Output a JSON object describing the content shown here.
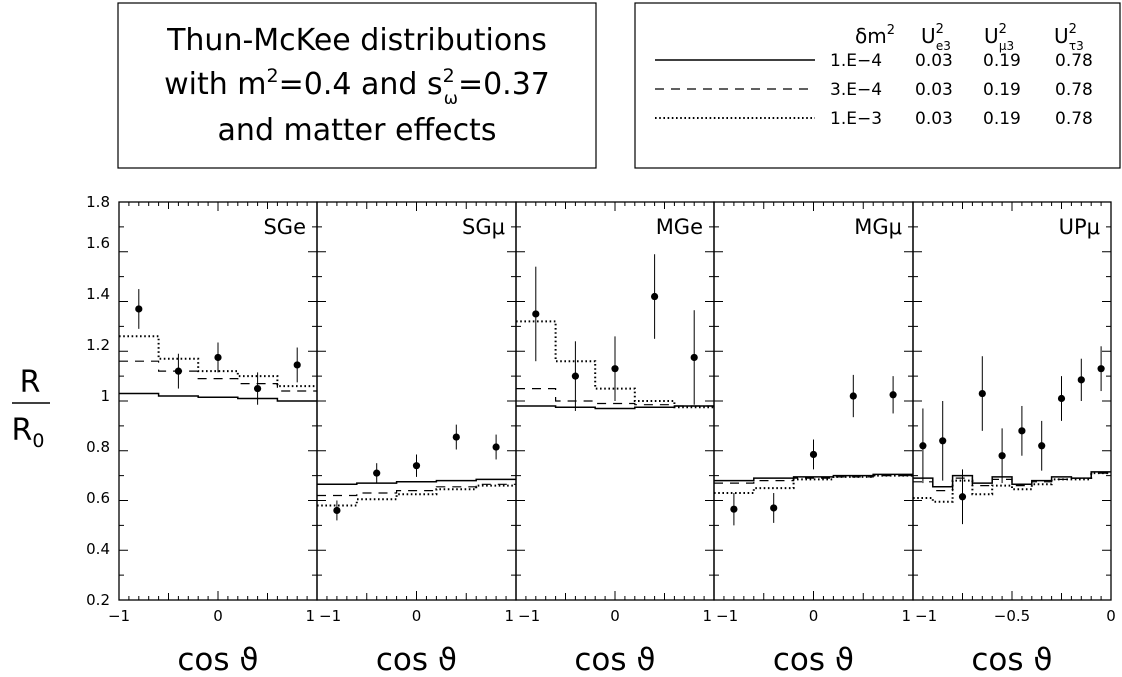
{
  "title_box": {
    "lines": [
      {
        "pre": "Thun-McKee distributions"
      },
      {
        "pre": "with m",
        "sup1": "2",
        "mid": "=0.4 and s",
        "sup2": "2",
        "sub2": "ω",
        "post": "=0.37"
      },
      {
        "pre": "and matter effects"
      }
    ]
  },
  "legend": {
    "header": {
      "dm2": {
        "base": "δm",
        "sup": "2"
      },
      "ue3": {
        "base": "U",
        "sup": "2",
        "sub": "e3"
      },
      "umu3": {
        "base": "U",
        "sup": "2",
        "sub": "μ3"
      },
      "utau3": {
        "base": "U",
        "sup": "2",
        "sub": "τ3"
      }
    },
    "rows": [
      {
        "style": "solid",
        "dm2": "1.E−4",
        "ue3": "0.03",
        "umu3": "0.19",
        "utau3": "0.78"
      },
      {
        "style": "dashed",
        "dm2": "3.E−4",
        "ue3": "0.03",
        "umu3": "0.19",
        "utau3": "0.78"
      },
      {
        "style": "dotted",
        "dm2": "1.E−3",
        "ue3": "0.03",
        "umu3": "0.19",
        "utau3": "0.78"
      }
    ]
  },
  "ylabel": {
    "num": "R",
    "den_base": "R",
    "den_sub": "0"
  },
  "xlabel": "cos ϑ",
  "y_tick_labels": [
    "0.2",
    "0.4",
    "0.6",
    "0.8",
    "1",
    "1.2",
    "1.4",
    "1.6",
    "1.8"
  ],
  "chart_data": [
    {
      "type": "step-line+scatter",
      "title": "SGe",
      "xlim": [
        -1,
        1
      ],
      "ylim": [
        0.2,
        1.8
      ],
      "x_ticks": [
        {
          "v": -1,
          "label": "−1"
        },
        {
          "v": 0,
          "label": "0"
        },
        {
          "v": 1,
          "label": "1"
        }
      ],
      "bin_edges": [
        -1,
        -0.6,
        -0.2,
        0.2,
        0.6,
        1
      ],
      "series": [
        {
          "style": "solid",
          "values": [
            1.03,
            1.02,
            1.015,
            1.01,
            1.0
          ]
        },
        {
          "style": "dashed",
          "values": [
            1.16,
            1.12,
            1.09,
            1.07,
            1.04
          ]
        },
        {
          "style": "dotted",
          "values": [
            1.26,
            1.17,
            1.12,
            1.1,
            1.06
          ]
        }
      ],
      "points": [
        {
          "x": -0.8,
          "y": 1.37,
          "err": 0.08
        },
        {
          "x": -0.4,
          "y": 1.12,
          "err": 0.07
        },
        {
          "x": 0.0,
          "y": 1.175,
          "err": 0.06
        },
        {
          "x": 0.4,
          "y": 1.05,
          "err": 0.065
        },
        {
          "x": 0.8,
          "y": 1.145,
          "err": 0.07
        }
      ]
    },
    {
      "type": "step-line+scatter",
      "title": "SGμ",
      "xlim": [
        -1,
        1
      ],
      "ylim": [
        0.2,
        1.8
      ],
      "x_ticks": [
        {
          "v": -1,
          "label": "−1"
        },
        {
          "v": 0,
          "label": "0"
        },
        {
          "v": 1,
          "label": "1"
        }
      ],
      "bin_edges": [
        -1,
        -0.6,
        -0.2,
        0.2,
        0.6,
        1
      ],
      "series": [
        {
          "style": "solid",
          "values": [
            0.665,
            0.67,
            0.675,
            0.68,
            0.685
          ]
        },
        {
          "style": "dashed",
          "values": [
            0.62,
            0.63,
            0.64,
            0.655,
            0.665
          ]
        },
        {
          "style": "dotted",
          "values": [
            0.58,
            0.605,
            0.625,
            0.645,
            0.66
          ]
        }
      ],
      "points": [
        {
          "x": -0.8,
          "y": 0.56,
          "err": 0.04
        },
        {
          "x": -0.4,
          "y": 0.71,
          "err": 0.04
        },
        {
          "x": 0.0,
          "y": 0.74,
          "err": 0.045
        },
        {
          "x": 0.4,
          "y": 0.855,
          "err": 0.05
        },
        {
          "x": 0.8,
          "y": 0.815,
          "err": 0.05
        }
      ]
    },
    {
      "type": "step-line+scatter",
      "title": "MGe",
      "xlim": [
        -1,
        1
      ],
      "ylim": [
        0.2,
        1.8
      ],
      "x_ticks": [
        {
          "v": -1,
          "label": "−1"
        },
        {
          "v": 0,
          "label": "0"
        },
        {
          "v": 1,
          "label": "1"
        }
      ],
      "bin_edges": [
        -1,
        -0.6,
        -0.2,
        0.2,
        0.6,
        1
      ],
      "series": [
        {
          "style": "solid",
          "values": [
            0.98,
            0.975,
            0.97,
            0.975,
            0.98
          ]
        },
        {
          "style": "dashed",
          "values": [
            1.05,
            1.0,
            0.99,
            0.985,
            0.98
          ]
        },
        {
          "style": "dotted",
          "values": [
            1.32,
            1.16,
            1.05,
            1.0,
            0.975
          ]
        }
      ],
      "points": [
        {
          "x": -0.8,
          "y": 1.35,
          "err": 0.19
        },
        {
          "x": -0.4,
          "y": 1.1,
          "err": 0.14
        },
        {
          "x": 0.0,
          "y": 1.13,
          "err": 0.13
        },
        {
          "x": 0.4,
          "y": 1.42,
          "err": 0.17
        },
        {
          "x": 0.8,
          "y": 1.175,
          "err": 0.19
        }
      ]
    },
    {
      "type": "step-line+scatter",
      "title": "MGμ",
      "xlim": [
        -1,
        1
      ],
      "ylim": [
        0.2,
        1.8
      ],
      "x_ticks": [
        {
          "v": -1,
          "label": "−1"
        },
        {
          "v": 0,
          "label": "0"
        },
        {
          "v": 1,
          "label": "1"
        }
      ],
      "bin_edges": [
        -1,
        -0.6,
        -0.2,
        0.2,
        0.6,
        1
      ],
      "series": [
        {
          "style": "solid",
          "values": [
            0.68,
            0.69,
            0.695,
            0.7,
            0.705
          ]
        },
        {
          "style": "dashed",
          "values": [
            0.67,
            0.68,
            0.69,
            0.695,
            0.7
          ]
        },
        {
          "style": "dotted",
          "values": [
            0.63,
            0.65,
            0.685,
            0.695,
            0.7
          ]
        }
      ],
      "points": [
        {
          "x": -0.8,
          "y": 0.565,
          "err": 0.065
        },
        {
          "x": -0.4,
          "y": 0.57,
          "err": 0.06
        },
        {
          "x": 0.0,
          "y": 0.785,
          "err": 0.06
        },
        {
          "x": 0.4,
          "y": 1.02,
          "err": 0.085
        },
        {
          "x": 0.8,
          "y": 1.025,
          "err": 0.075
        }
      ]
    },
    {
      "type": "step-line+scatter",
      "title": "UPμ",
      "xlim": [
        -1,
        0
      ],
      "ylim": [
        0.2,
        1.8
      ],
      "x_ticks": [
        {
          "v": -1,
          "label": "−1"
        },
        {
          "v": -0.5,
          "label": "−0.5"
        },
        {
          "v": 0,
          "label": "0"
        }
      ],
      "bin_edges": [
        -1,
        -0.9,
        -0.8,
        -0.7,
        -0.6,
        -0.5,
        -0.4,
        -0.3,
        -0.2,
        -0.1,
        0
      ],
      "series": [
        {
          "style": "solid",
          "values": [
            0.69,
            0.655,
            0.7,
            0.67,
            0.695,
            0.665,
            0.68,
            0.695,
            0.69,
            0.715
          ]
        },
        {
          "style": "dashed",
          "values": [
            0.675,
            0.64,
            0.69,
            0.66,
            0.685,
            0.66,
            0.675,
            0.685,
            0.69,
            0.71
          ]
        },
        {
          "style": "dotted",
          "values": [
            0.61,
            0.595,
            0.68,
            0.625,
            0.66,
            0.645,
            0.665,
            0.685,
            0.685,
            0.71
          ]
        }
      ],
      "points": [
        {
          "x": -0.95,
          "y": 0.82,
          "err": 0.15
        },
        {
          "x": -0.85,
          "y": 0.84,
          "err": 0.16
        },
        {
          "x": -0.75,
          "y": 0.615,
          "err": 0.11
        },
        {
          "x": -0.65,
          "y": 1.03,
          "err": 0.15
        },
        {
          "x": -0.55,
          "y": 0.78,
          "err": 0.11
        },
        {
          "x": -0.45,
          "y": 0.88,
          "err": 0.1
        },
        {
          "x": -0.35,
          "y": 0.82,
          "err": 0.1
        },
        {
          "x": -0.25,
          "y": 1.01,
          "err": 0.09
        },
        {
          "x": -0.15,
          "y": 1.085,
          "err": 0.085
        },
        {
          "x": -0.05,
          "y": 1.13,
          "err": 0.09
        }
      ]
    }
  ]
}
